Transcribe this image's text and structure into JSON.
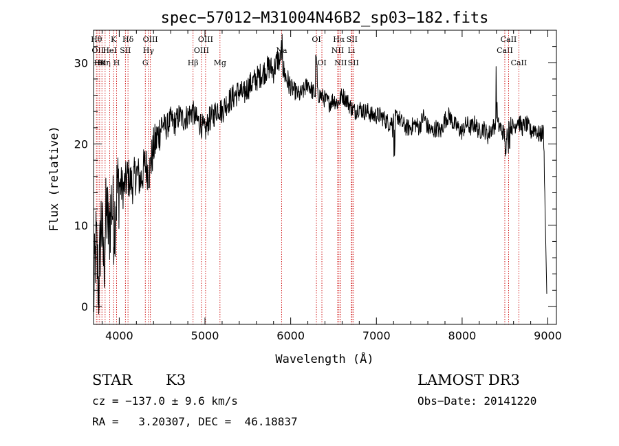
{
  "chart_data": {
    "type": "line",
    "title": "spec−57012−M31004N46B2_sp03−182.fits",
    "xlabel": "Wavelength (Å)",
    "ylabel": "Flux (relative)",
    "xlim": [
      3700,
      9100
    ],
    "ylim": [
      -2.2,
      34
    ],
    "x_ticks": [
      4000,
      5000,
      6000,
      7000,
      8000,
      9000
    ],
    "y_ticks": [
      0,
      10,
      20,
      30
    ],
    "grid": false,
    "series": [
      {
        "name": "flux",
        "color": "#000000",
        "x": [
          3700,
          3730,
          3760,
          3790,
          3820,
          3850,
          3880,
          3910,
          3940,
          3970,
          4000,
          4050,
          4100,
          4150,
          4200,
          4250,
          4300,
          4350,
          4400,
          4450,
          4500,
          4550,
          4600,
          4650,
          4700,
          4750,
          4800,
          4850,
          4900,
          4950,
          5000,
          5050,
          5100,
          5150,
          5200,
          5250,
          5300,
          5350,
          5400,
          5450,
          5500,
          5550,
          5600,
          5650,
          5700,
          5750,
          5800,
          5850,
          5900,
          5950,
          6000,
          6050,
          6100,
          6150,
          6200,
          6250,
          6300,
          6350,
          6400,
          6450,
          6500,
          6550,
          6600,
          6650,
          6700,
          6750,
          6800,
          6850,
          6900,
          6950,
          7000,
          7050,
          7100,
          7150,
          7200,
          7250,
          7300,
          7350,
          7400,
          7450,
          7500,
          7550,
          7600,
          7650,
          7700,
          7750,
          7800,
          7850,
          7900,
          7950,
          8000,
          8050,
          8100,
          8150,
          8200,
          8250,
          8300,
          8350,
          8400,
          8450,
          8500,
          8550,
          8600,
          8650,
          8700,
          8750,
          8800,
          8850,
          8900,
          8950,
          8990
        ],
        "y": [
          0.5,
          8,
          2,
          11,
          5,
          12,
          9,
          13,
          10,
          14,
          15,
          14.5,
          16,
          15,
          16.5,
          15.5,
          17.5,
          16.5,
          19.5,
          21,
          22.5,
          22,
          23,
          22.5,
          23.5,
          23,
          23.5,
          24,
          23,
          22.5,
          21.5,
          23,
          23.5,
          24.5,
          24,
          25,
          25.5,
          26,
          26.5,
          26,
          27,
          27.5,
          28,
          28.5,
          29,
          29.5,
          29,
          30.5,
          29.5,
          28,
          27,
          26.5,
          26,
          26.5,
          27.5,
          26.5,
          26,
          26,
          25.5,
          25,
          25.5,
          25,
          26,
          25.5,
          24.5,
          24,
          24.5,
          24,
          24,
          23.5,
          23.5,
          23.5,
          23,
          22.5,
          23,
          23.5,
          22.5,
          22,
          22,
          22.5,
          22,
          23.5,
          22,
          21.5,
          22,
          21.5,
          23,
          23.5,
          22.5,
          22,
          21.5,
          22.5,
          22,
          22.5,
          21.5,
          22,
          21,
          22,
          22.5,
          22,
          21,
          22.5,
          22,
          23,
          22,
          22.5,
          21.5,
          22,
          21,
          21.5,
          0.5
        ]
      }
    ],
    "line_markers": [
      {
        "x": 3734,
        "label": "Hθ",
        "row": 1
      },
      {
        "x": 3750,
        "label": "OII",
        "row": 2
      },
      {
        "x": 3771,
        "label": "Hκ",
        "row": 3
      },
      {
        "x": 3798,
        "label": "Hι",
        "row": 3
      },
      {
        "x": 3835,
        "label": "Hη",
        "row": 3
      },
      {
        "x": 3889,
        "label": "HeI",
        "row": 2
      },
      {
        "x": 3934,
        "label": "K",
        "row": 1
      },
      {
        "x": 3969,
        "label": "H",
        "row": 3
      },
      {
        "x": 4072,
        "label": "SII",
        "row": 2
      },
      {
        "x": 4102,
        "label": "Hδ",
        "row": 1
      },
      {
        "x": 4304,
        "label": "G",
        "row": 3
      },
      {
        "x": 4341,
        "label": "Hγ",
        "row": 2
      },
      {
        "x": 4363,
        "label": "OIII",
        "row": 1
      },
      {
        "x": 4861,
        "label": "Hβ",
        "row": 3
      },
      {
        "x": 4959,
        "label": "OIII",
        "row": 2
      },
      {
        "x": 5007,
        "label": "OIII",
        "row": 1
      },
      {
        "x": 5175,
        "label": "Mg",
        "row": 3
      },
      {
        "x": 5894,
        "label": "Na",
        "row": 2
      },
      {
        "x": 6300,
        "label": "OI",
        "row": 1
      },
      {
        "x": 6364,
        "label": "OI",
        "row": 3
      },
      {
        "x": 6548,
        "label": "NII",
        "row": 2
      },
      {
        "x": 6563,
        "label": "Hα",
        "row": 1
      },
      {
        "x": 6583,
        "label": "NII",
        "row": 3
      },
      {
        "x": 6708,
        "label": "Li",
        "row": 2
      },
      {
        "x": 6716,
        "label": "SII",
        "row": 1
      },
      {
        "x": 6731,
        "label": "SII",
        "row": 3
      },
      {
        "x": 8498,
        "label": "CaII",
        "row": 2
      },
      {
        "x": 8542,
        "label": "CaII",
        "row": 1
      },
      {
        "x": 8662,
        "label": "CaII",
        "row": 3
      }
    ]
  },
  "info": {
    "class": "STAR",
    "subclass": "K3",
    "survey": "LAMOST DR3",
    "cz": "cz = −137.0 ± 9.6 km/s",
    "obs_date": "Obs−Date: 20141220",
    "coords": "RA =   3.20307, DEC =  46.18837"
  }
}
